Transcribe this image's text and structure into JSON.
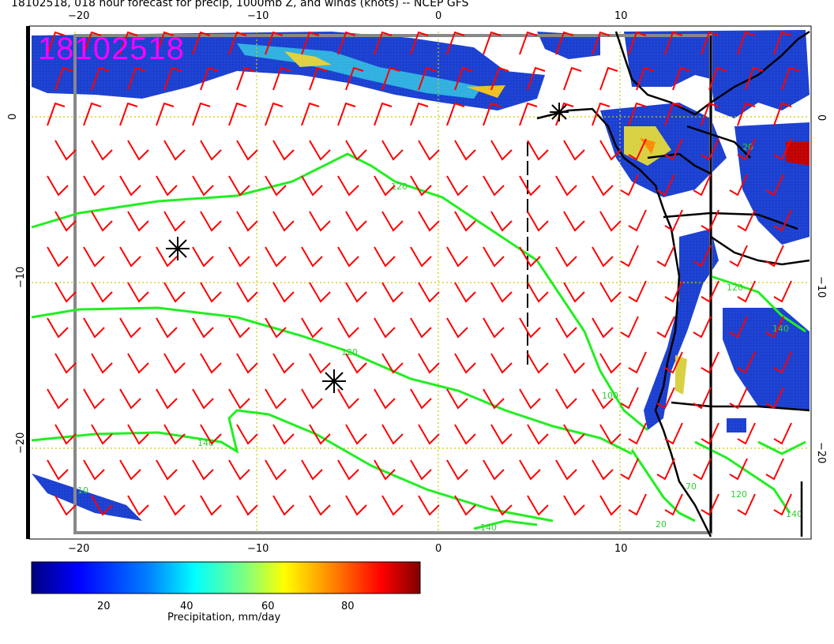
{
  "title": "18102518, 018 hour forecast for precip, 1000mb Z, and winds (knots) -- NCEP GFS",
  "stamp": "18102518",
  "map": {
    "lon_ticks_top": [
      "−20",
      "−10",
      "0",
      "10"
    ],
    "lon_ticks_bottom": [
      "−20",
      "−10",
      "0",
      "10"
    ],
    "lat_ticks_left": [
      "0",
      "−10",
      "−20"
    ],
    "lat_ticks_right": [
      "0",
      "−10",
      "−20"
    ],
    "contour_labels": [
      "120",
      "120",
      "140",
      "140",
      "100",
      "120",
      "120",
      "140",
      "140",
      "20",
      "20",
      "10",
      "70"
    ],
    "colors": {
      "wind_barb": "#ff0000",
      "contour": "#00dd00",
      "grid": "#cccc00",
      "coast": "#000000"
    }
  },
  "colorbar": {
    "ticks": [
      "20",
      "40",
      "60",
      "80"
    ],
    "label": "Precipitation, mm/day",
    "colormap": [
      "#00007f",
      "#0000ff",
      "#007fff",
      "#00ffff",
      "#7fff7f",
      "#ffff00",
      "#ff7f00",
      "#ff0000",
      "#7f0000"
    ]
  }
}
